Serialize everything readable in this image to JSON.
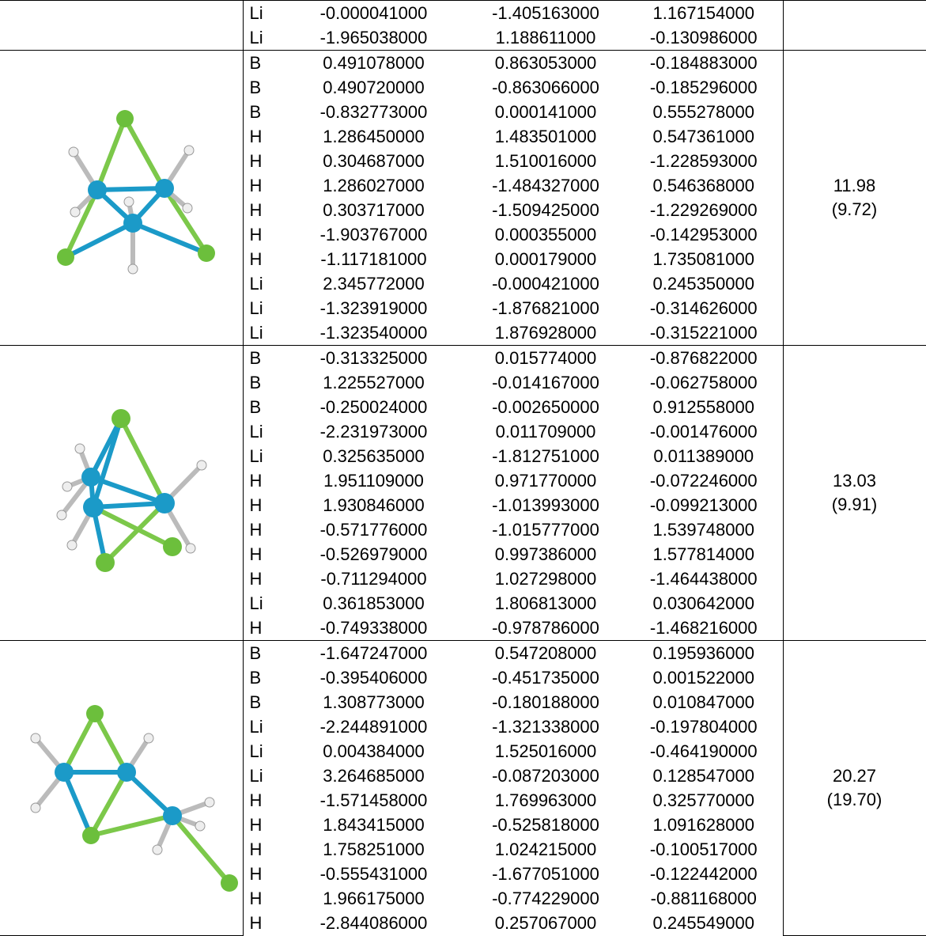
{
  "table": {
    "sections": [
      {
        "atoms": [
          [
            "Li",
            "-0.000041000",
            "-1.405163000",
            "1.167154000"
          ],
          [
            "Li",
            "-1.965038000",
            "1.188611000",
            "-0.130986000"
          ]
        ]
      },
      {
        "atoms": [
          [
            "B",
            "0.491078000",
            "0.863053000",
            "-0.184883000"
          ],
          [
            "B",
            "0.490720000",
            "-0.863066000",
            "-0.185296000"
          ],
          [
            "B",
            "-0.832773000",
            "0.000141000",
            "0.555278000"
          ],
          [
            "H",
            "1.286450000",
            "1.483501000",
            "0.547361000"
          ],
          [
            "H",
            "0.304687000",
            "1.510016000",
            "-1.228593000"
          ],
          [
            "H",
            "1.286027000",
            "-1.484327000",
            "0.546368000"
          ],
          [
            "H",
            "0.303717000",
            "-1.509425000",
            "-1.229269000"
          ],
          [
            "H",
            "-1.903767000",
            "0.000355000",
            "-0.142953000"
          ],
          [
            "H",
            "-1.117181000",
            "0.000179000",
            "1.735081000"
          ],
          [
            "Li",
            "2.345772000",
            "-0.000421000",
            "0.245350000"
          ],
          [
            "Li",
            "-1.323919000",
            "-1.876821000",
            "-0.314626000"
          ],
          [
            "Li",
            "-1.323540000",
            "1.876928000",
            "-0.315221000"
          ]
        ],
        "energy": "11.98",
        "energy_alt": "(9.72)"
      },
      {
        "atoms": [
          [
            "B",
            "-0.313325000",
            "0.015774000",
            "-0.876822000"
          ],
          [
            "B",
            "1.225527000",
            "-0.014167000",
            "-0.062758000"
          ],
          [
            "B",
            "-0.250024000",
            "-0.002650000",
            "0.912558000"
          ],
          [
            "Li",
            "-2.231973000",
            "0.011709000",
            "-0.001476000"
          ],
          [
            "Li",
            "0.325635000",
            "-1.812751000",
            "0.011389000"
          ],
          [
            "H",
            "1.951109000",
            "0.971770000",
            "-0.072246000"
          ],
          [
            "H",
            "1.930846000",
            "-1.013993000",
            "-0.099213000"
          ],
          [
            "H",
            "-0.571776000",
            "-1.015777000",
            "1.539748000"
          ],
          [
            "H",
            "-0.526979000",
            "0.997386000",
            "1.577814000"
          ],
          [
            "H",
            "-0.711294000",
            "1.027298000",
            "-1.464438000"
          ],
          [
            "Li",
            "0.361853000",
            "1.806813000",
            "0.030642000"
          ],
          [
            "H",
            "-0.749338000",
            "-0.978786000",
            "-1.468216000"
          ]
        ],
        "energy": "13.03",
        "energy_alt": "(9.91)"
      },
      {
        "atoms": [
          [
            "B",
            "-1.647247000",
            "0.547208000",
            "0.195936000"
          ],
          [
            "B",
            "-0.395406000",
            "-0.451735000",
            "0.001522000"
          ],
          [
            "B",
            "1.308773000",
            "-0.180188000",
            "0.010847000"
          ],
          [
            "Li",
            "-2.244891000",
            "-1.321338000",
            "-0.197804000"
          ],
          [
            "Li",
            "0.004384000",
            "1.525016000",
            "-0.464190000"
          ],
          [
            "Li",
            "3.264685000",
            "-0.087203000",
            "0.128547000"
          ],
          [
            "H",
            "-1.571458000",
            "1.769963000",
            "0.325770000"
          ],
          [
            "H",
            "1.843415000",
            "-0.525818000",
            "1.091628000"
          ],
          [
            "H",
            "1.758251000",
            "1.024215000",
            "-0.100517000"
          ],
          [
            "H",
            "-0.555431000",
            "-1.677051000",
            "-0.122442000"
          ],
          [
            "H",
            "1.966175000",
            "-0.774229000",
            "-0.881168000"
          ],
          [
            "H",
            "-2.844086000",
            "0.257067000",
            "0.245549000"
          ]
        ],
        "energy": "20.27",
        "energy_alt": "(19.70)"
      }
    ]
  }
}
